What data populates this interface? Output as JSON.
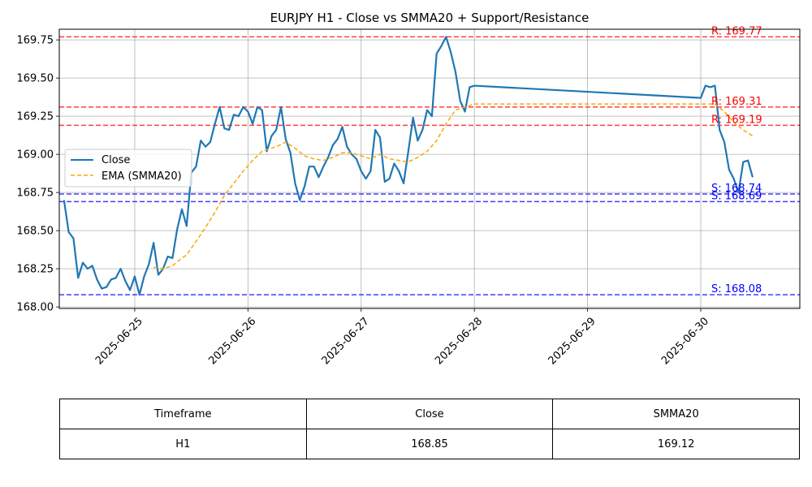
{
  "chart_data": {
    "type": "line",
    "title": "EURJPY H1 - Close vs SMMA20 + Support/Resistance",
    "xlabel": "",
    "ylabel": "",
    "x_range": [
      "2025-06-24 08:00",
      "2025-06-30 21:00"
    ],
    "ylim": [
      167.99,
      169.82
    ],
    "y_ticks": [
      "168.00",
      "168.25",
      "168.50",
      "168.75",
      "169.00",
      "169.25",
      "169.50",
      "169.75"
    ],
    "x_ticks": [
      "2025-06-25",
      "2025-06-26",
      "2025-06-27",
      "2025-06-28",
      "2025-06-29",
      "2025-06-30"
    ],
    "grid": true,
    "legend_position": "center-left",
    "series": [
      {
        "name": "Close",
        "color": "#1f77b4",
        "style": "solid",
        "points": [
          [
            "2025-06-24 09:00",
            168.7
          ],
          [
            "2025-06-24 10:00",
            168.49
          ],
          [
            "2025-06-24 11:00",
            168.45
          ],
          [
            "2025-06-24 12:00",
            168.19
          ],
          [
            "2025-06-24 13:00",
            168.29
          ],
          [
            "2025-06-24 14:00",
            168.25
          ],
          [
            "2025-06-24 15:00",
            168.27
          ],
          [
            "2025-06-24 16:00",
            168.18
          ],
          [
            "2025-06-24 17:00",
            168.12
          ],
          [
            "2025-06-24 18:00",
            168.13
          ],
          [
            "2025-06-24 19:00",
            168.18
          ],
          [
            "2025-06-24 20:00",
            168.19
          ],
          [
            "2025-06-24 21:00",
            168.25
          ],
          [
            "2025-06-24 22:00",
            168.17
          ],
          [
            "2025-06-24 23:00",
            168.11
          ],
          [
            "2025-06-25 00:00",
            168.2
          ],
          [
            "2025-06-25 01:00",
            168.08
          ],
          [
            "2025-06-25 02:00",
            168.2
          ],
          [
            "2025-06-25 03:00",
            168.28
          ],
          [
            "2025-06-25 04:00",
            168.42
          ],
          [
            "2025-06-25 05:00",
            168.21
          ],
          [
            "2025-06-25 06:00",
            168.25
          ],
          [
            "2025-06-25 07:00",
            168.33
          ],
          [
            "2025-06-25 08:00",
            168.32
          ],
          [
            "2025-06-25 09:00",
            168.51
          ],
          [
            "2025-06-25 10:00",
            168.64
          ],
          [
            "2025-06-25 11:00",
            168.53
          ],
          [
            "2025-06-25 12:00",
            168.88
          ],
          [
            "2025-06-25 13:00",
            168.92
          ],
          [
            "2025-06-25 14:00",
            169.09
          ],
          [
            "2025-06-25 15:00",
            169.05
          ],
          [
            "2025-06-25 16:00",
            169.08
          ],
          [
            "2025-06-25 17:00",
            169.2
          ],
          [
            "2025-06-25 18:00",
            169.31
          ],
          [
            "2025-06-25 19:00",
            169.17
          ],
          [
            "2025-06-25 20:00",
            169.16
          ],
          [
            "2025-06-25 21:00",
            169.26
          ],
          [
            "2025-06-25 22:00",
            169.25
          ],
          [
            "2025-06-25 23:00",
            169.31
          ],
          [
            "2025-06-26 00:00",
            169.28
          ],
          [
            "2025-06-26 01:00",
            169.2
          ],
          [
            "2025-06-26 02:00",
            169.31
          ],
          [
            "2025-06-26 03:00",
            169.29
          ],
          [
            "2025-06-26 04:00",
            169.02
          ],
          [
            "2025-06-26 05:00",
            169.12
          ],
          [
            "2025-06-26 06:00",
            169.16
          ],
          [
            "2025-06-26 07:00",
            169.31
          ],
          [
            "2025-06-26 08:00",
            169.1
          ],
          [
            "2025-06-26 09:00",
            169.01
          ],
          [
            "2025-06-26 10:00",
            168.81
          ],
          [
            "2025-06-26 11:00",
            168.7
          ],
          [
            "2025-06-26 12:00",
            168.79
          ],
          [
            "2025-06-26 13:00",
            168.92
          ],
          [
            "2025-06-26 14:00",
            168.92
          ],
          [
            "2025-06-26 15:00",
            168.85
          ],
          [
            "2025-06-26 16:00",
            168.92
          ],
          [
            "2025-06-26 17:00",
            168.98
          ],
          [
            "2025-06-26 18:00",
            169.06
          ],
          [
            "2025-06-26 19:00",
            169.1
          ],
          [
            "2025-06-26 20:00",
            169.18
          ],
          [
            "2025-06-26 21:00",
            169.05
          ],
          [
            "2025-06-26 22:00",
            169.0
          ],
          [
            "2025-06-26 23:00",
            168.97
          ],
          [
            "2025-06-27 00:00",
            168.89
          ],
          [
            "2025-06-27 01:00",
            168.84
          ],
          [
            "2025-06-27 02:00",
            168.89
          ],
          [
            "2025-06-27 03:00",
            169.16
          ],
          [
            "2025-06-27 04:00",
            169.11
          ],
          [
            "2025-06-27 05:00",
            168.82
          ],
          [
            "2025-06-27 06:00",
            168.84
          ],
          [
            "2025-06-27 07:00",
            168.94
          ],
          [
            "2025-06-27 08:00",
            168.89
          ],
          [
            "2025-06-27 09:00",
            168.81
          ],
          [
            "2025-06-27 10:00",
            169.02
          ],
          [
            "2025-06-27 11:00",
            169.24
          ],
          [
            "2025-06-27 12:00",
            169.09
          ],
          [
            "2025-06-27 13:00",
            169.16
          ],
          [
            "2025-06-27 14:00",
            169.29
          ],
          [
            "2025-06-27 15:00",
            169.25
          ],
          [
            "2025-06-27 16:00",
            169.66
          ],
          [
            "2025-06-27 17:00",
            169.71
          ],
          [
            "2025-06-27 18:00",
            169.77
          ],
          [
            "2025-06-27 19:00",
            169.67
          ],
          [
            "2025-06-27 20:00",
            169.54
          ],
          [
            "2025-06-27 21:00",
            169.35
          ],
          [
            "2025-06-27 22:00",
            169.28
          ],
          [
            "2025-06-27 23:00",
            169.44
          ],
          [
            "2025-06-28 00:00",
            169.45
          ],
          [
            "2025-06-30 00:00",
            169.37
          ],
          [
            "2025-06-30 01:00",
            169.45
          ],
          [
            "2025-06-30 02:00",
            169.44
          ],
          [
            "2025-06-30 03:00",
            169.45
          ],
          [
            "2025-06-30 04:00",
            169.16
          ],
          [
            "2025-06-30 05:00",
            169.08
          ],
          [
            "2025-06-30 06:00",
            168.9
          ],
          [
            "2025-06-30 07:00",
            168.84
          ],
          [
            "2025-06-30 08:00",
            168.75
          ],
          [
            "2025-06-30 09:00",
            168.95
          ],
          [
            "2025-06-30 10:00",
            168.96
          ],
          [
            "2025-06-30 11:00",
            168.85
          ]
        ]
      },
      {
        "name": "EMA (SMMA20)",
        "color": "#ffa500",
        "style": "dashed",
        "points": [
          [
            "2025-06-25 04:00",
            168.26
          ],
          [
            "2025-06-25 06:00",
            168.25
          ],
          [
            "2025-06-25 08:00",
            168.27
          ],
          [
            "2025-06-25 10:00",
            168.32
          ],
          [
            "2025-06-25 11:00",
            168.34
          ],
          [
            "2025-06-25 13:00",
            168.43
          ],
          [
            "2025-06-25 15:00",
            168.52
          ],
          [
            "2025-06-25 17:00",
            168.62
          ],
          [
            "2025-06-25 19:00",
            168.73
          ],
          [
            "2025-06-25 21:00",
            168.81
          ],
          [
            "2025-06-25 23:00",
            168.89
          ],
          [
            "2025-06-26 01:00",
            168.96
          ],
          [
            "2025-06-26 03:00",
            169.02
          ],
          [
            "2025-06-26 04:00",
            169.03
          ],
          [
            "2025-06-26 06:00",
            169.05
          ],
          [
            "2025-06-26 08:00",
            169.08
          ],
          [
            "2025-06-26 10:00",
            169.04
          ],
          [
            "2025-06-26 12:00",
            168.99
          ],
          [
            "2025-06-26 14:00",
            168.97
          ],
          [
            "2025-06-26 16:00",
            168.96
          ],
          [
            "2025-06-26 18:00",
            168.98
          ],
          [
            "2025-06-26 20:00",
            169.01
          ],
          [
            "2025-06-26 22:00",
            169.01
          ],
          [
            "2025-06-27 00:00",
            168.99
          ],
          [
            "2025-06-27 02:00",
            168.97
          ],
          [
            "2025-06-27 04:00",
            169.0
          ],
          [
            "2025-06-27 06:00",
            168.97
          ],
          [
            "2025-06-27 08:00",
            168.96
          ],
          [
            "2025-06-27 10:00",
            168.95
          ],
          [
            "2025-06-27 12:00",
            168.98
          ],
          [
            "2025-06-27 14:00",
            169.02
          ],
          [
            "2025-06-27 16:00",
            169.09
          ],
          [
            "2025-06-27 18:00",
            169.2
          ],
          [
            "2025-06-27 20:00",
            169.29
          ],
          [
            "2025-06-27 22:00",
            169.31
          ],
          [
            "2025-06-28 00:00",
            169.33
          ],
          [
            "2025-06-30 00:00",
            169.33
          ],
          [
            "2025-06-30 03:00",
            169.33
          ],
          [
            "2025-06-30 05:00",
            169.28
          ],
          [
            "2025-06-30 07:00",
            169.21
          ],
          [
            "2025-06-30 09:00",
            169.16
          ],
          [
            "2025-06-30 11:00",
            169.12
          ]
        ]
      }
    ],
    "levels": [
      {
        "kind": "resistance",
        "value": 169.77,
        "label": "R: 169.77",
        "color": "#ff0000"
      },
      {
        "kind": "resistance",
        "value": 169.31,
        "label": "R: 169.31",
        "color": "#ff0000"
      },
      {
        "kind": "resistance",
        "value": 169.19,
        "label": "R: 169.19",
        "color": "#ff0000"
      },
      {
        "kind": "support",
        "value": 168.74,
        "label": "S: 168.74",
        "color": "#0000ff"
      },
      {
        "kind": "support",
        "value": 168.69,
        "label": "S: 168.69",
        "color": "#0000ff"
      },
      {
        "kind": "support",
        "value": 168.08,
        "label": "S: 168.08",
        "color": "#0000ff"
      }
    ]
  },
  "table": {
    "headers": [
      "Timeframe",
      "Close",
      "SMMA20"
    ],
    "rows": [
      [
        "H1",
        "168.85",
        "169.12"
      ]
    ]
  }
}
